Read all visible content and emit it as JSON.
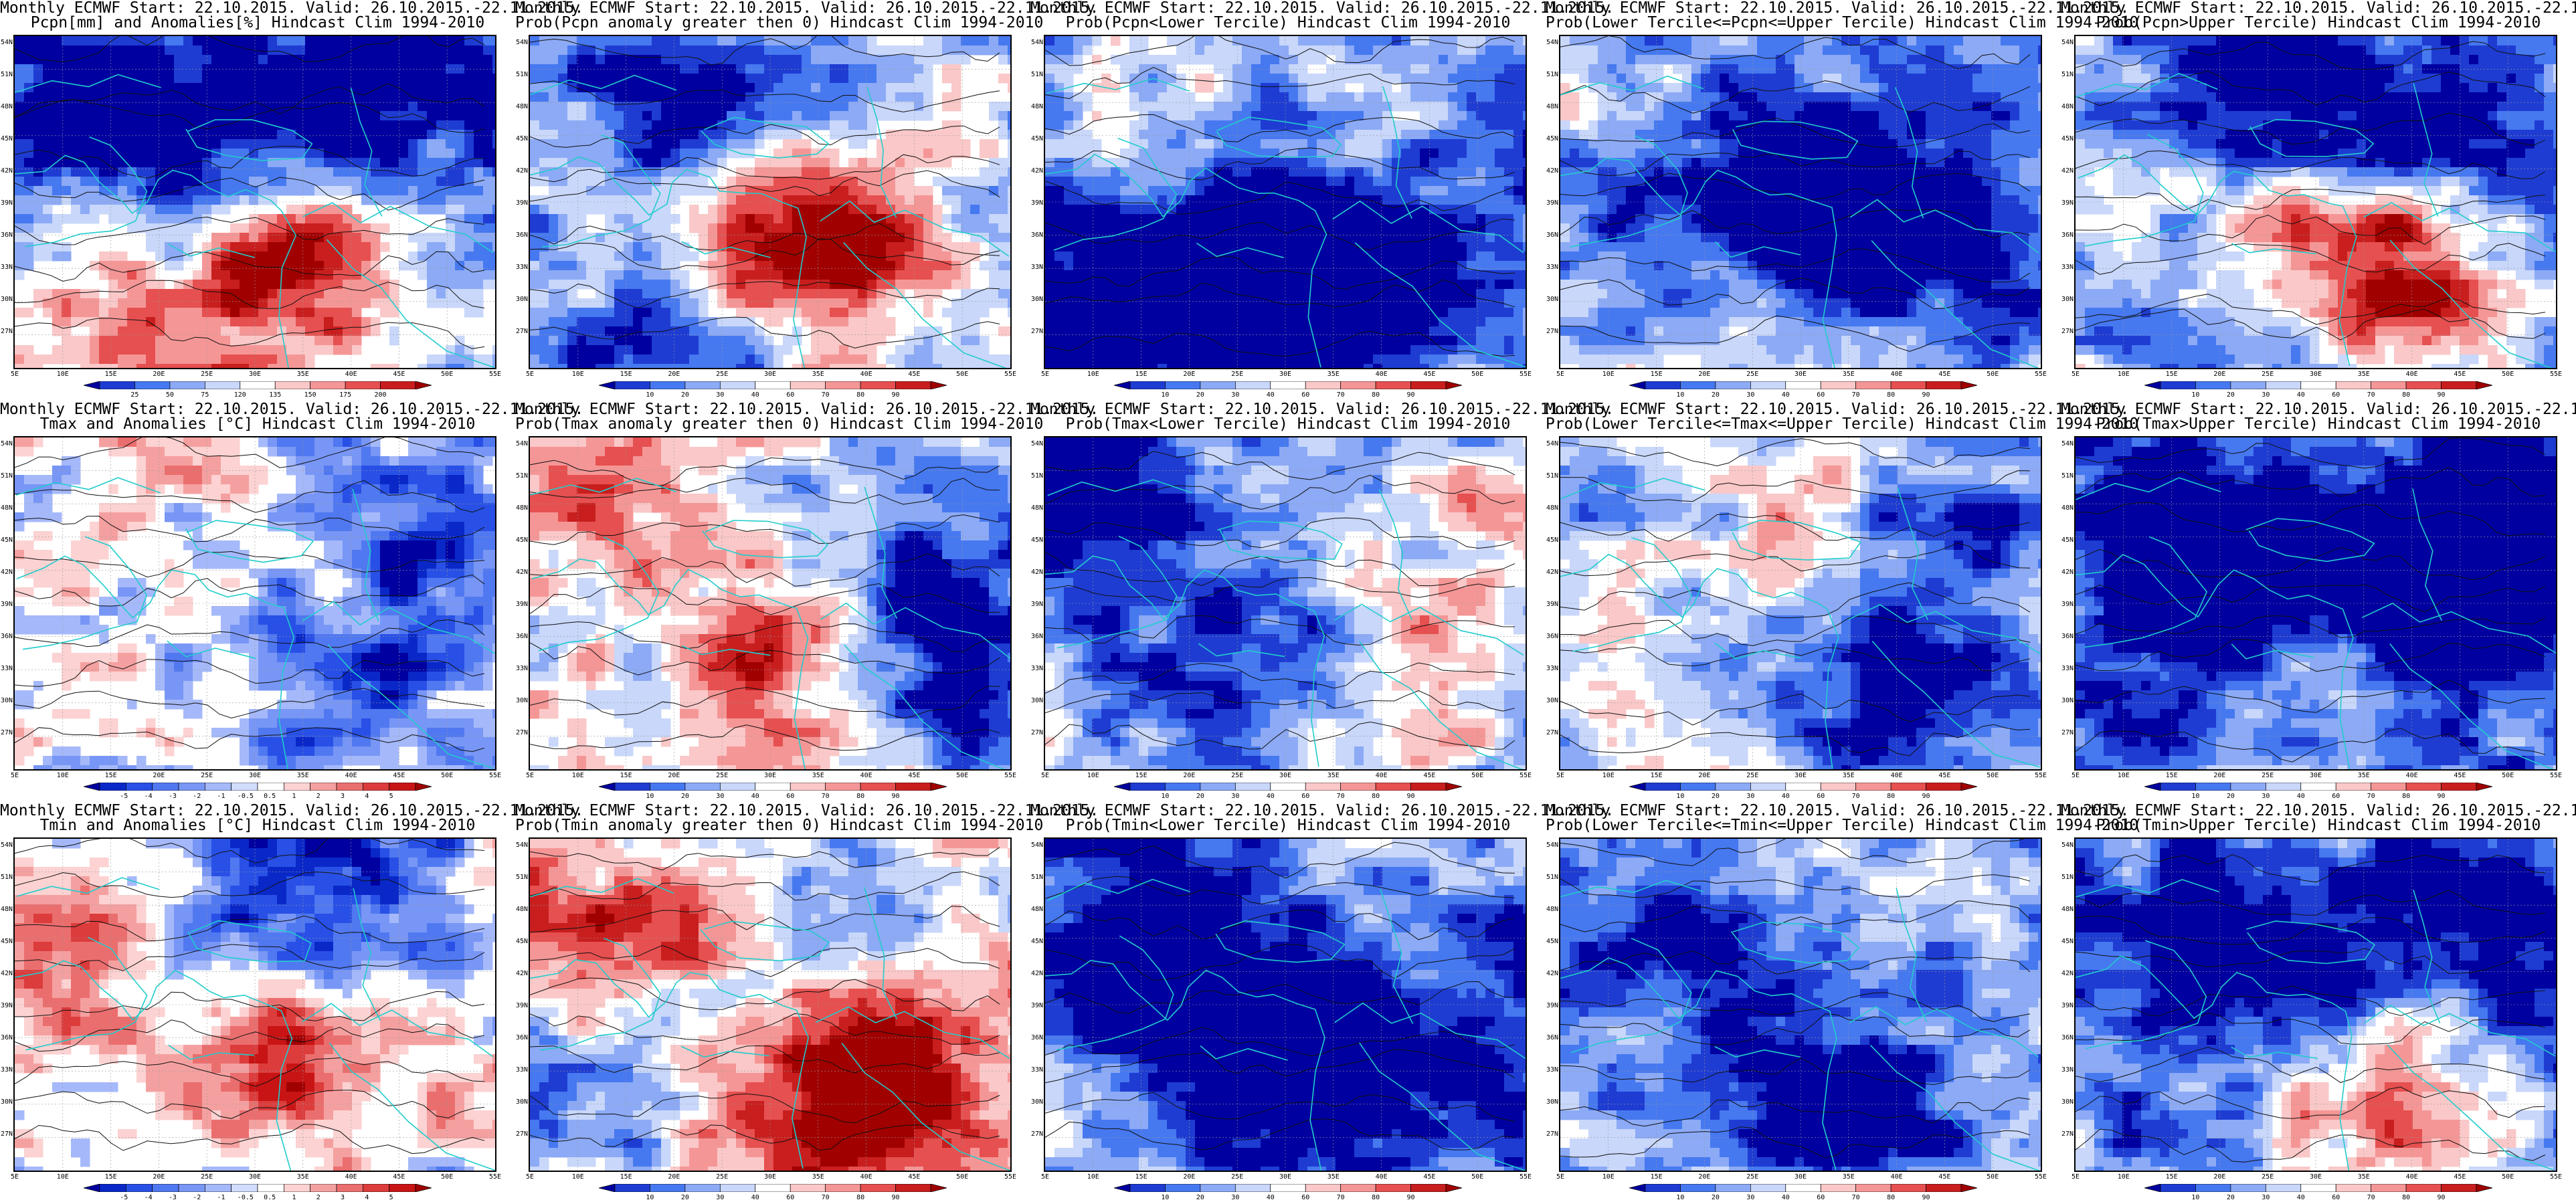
{
  "title_line1": "Monthly ECMWF Start: 22.10.2015. Valid: 26.10.2015.-22.11.2015.",
  "lat_labels": [
    "54N",
    "51N",
    "48N",
    "45N",
    "42N",
    "39N",
    "36N",
    "33N",
    "30N",
    "27N"
  ],
  "lon_labels": [
    "5E",
    "10E",
    "15E",
    "20E",
    "25E",
    "30E",
    "35E",
    "40E",
    "45E",
    "50E",
    "55E"
  ],
  "colorbars": {
    "precip_anom": [
      "25",
      "50",
      "75",
      "120",
      "135",
      "150",
      "175",
      "200"
    ],
    "temp_anom": [
      "-5",
      "-4",
      "-3",
      "-2",
      "-1",
      "-0.5",
      "0.5",
      "1",
      "2",
      "3",
      "4",
      "5"
    ],
    "prob": [
      "10",
      "20",
      "30",
      "40",
      "60",
      "70",
      "80",
      "90"
    ]
  },
  "palettes": {
    "blue_red_8": [
      "#0000a0",
      "#1e3cd2",
      "#4678f0",
      "#8caaf5",
      "#c8d7fa",
      "#ffffff",
      "#fac8c8",
      "#f59696",
      "#e65050",
      "#c81e1e",
      "#a00000"
    ],
    "blue_red_12": [
      "#0000a0",
      "#0a28c8",
      "#2850e6",
      "#5078f0",
      "#7896f5",
      "#a5b9fa",
      "#d2dcfc",
      "#ffffff",
      "#fcd2d2",
      "#f5a0a0",
      "#eb6e6e",
      "#dc3c3c",
      "#c81414",
      "#a00000"
    ]
  },
  "rows": [
    {
      "var": "Pcpn",
      "panels": [
        {
          "id": "pcpn-anom",
          "line2": "Pcpn[mm] and Anomalies[%] Hindcast Clim 1994-2010",
          "cbar": "precip_anom",
          "field": {
            "base": -0.4,
            "mode": "anom",
            "hot": [
              [
                0.62,
                0.65,
                0.9
              ],
              [
                0.1,
                0.9,
                0.5
              ],
              [
                0.4,
                0.88,
                0.4
              ]
            ],
            "cold": [
              [
                0.15,
                0.18,
                0.7
              ],
              [
                0.5,
                0.25,
                0.5
              ],
              [
                0.8,
                0.12,
                0.5
              ]
            ]
          }
        },
        {
          "id": "pcpn-prob-pos",
          "line2": "Prob(Pcpn anomaly greater then 0) Hindcast Clim 1994-2010",
          "cbar": "prob",
          "field": {
            "base": -0.3,
            "mode": "prob",
            "hot": [
              [
                0.65,
                0.65,
                0.9
              ],
              [
                0.35,
                0.55,
                0.4
              ]
            ],
            "cold": [
              [
                0.3,
                0.2,
                0.6
              ],
              [
                0.2,
                0.9,
                0.4
              ]
            ]
          }
        },
        {
          "id": "pcpn-prob-lower",
          "line2": "Prob(Pcpn<Lower Tercile) Hindcast Clim 1994-2010",
          "cbar": "prob",
          "field": {
            "base": -0.7,
            "mode": "prob",
            "hot": [
              [
                0.25,
                0.2,
                0.4
              ],
              [
                0.7,
                0.2,
                0.3
              ]
            ],
            "cold": [
              [
                0.55,
                0.65,
                1.0
              ],
              [
                0.2,
                0.8,
                0.7
              ]
            ]
          }
        },
        {
          "id": "pcpn-prob-mid",
          "line2": "Prob(Lower Tercile<=Pcpn<=Upper Tercile) Hindcast Clim 1994-2010",
          "cbar": "prob",
          "field": {
            "base": -0.5,
            "mode": "prob",
            "hot": [
              [
                0.2,
                0.25,
                0.3
              ],
              [
                0.35,
                0.95,
                0.3
              ]
            ],
            "cold": [
              [
                0.65,
                0.55,
                0.8
              ],
              [
                0.3,
                0.4,
                0.5
              ]
            ]
          }
        },
        {
          "id": "pcpn-prob-upper",
          "line2": "Prob(Pcpn>Upper Tercile) Hindcast Clim 1994-2010",
          "cbar": "prob",
          "field": {
            "base": -0.45,
            "mode": "prob",
            "hot": [
              [
                0.68,
                0.7,
                1.0
              ],
              [
                0.4,
                0.55,
                0.5
              ]
            ],
            "cold": [
              [
                0.4,
                0.15,
                0.6
              ],
              [
                0.8,
                0.3,
                0.5
              ]
            ]
          }
        }
      ]
    },
    {
      "var": "Tmax",
      "panels": [
        {
          "id": "tmax-anom",
          "line2": "Tmax and Anomalies [°C] Hindcast Clim 1994-2010",
          "cbar": "temp_anom",
          "field": {
            "base": -0.1,
            "mode": "anom",
            "hot": [
              [
                0.3,
                0.2,
                0.15
              ]
            ],
            "cold": [
              [
                0.9,
                0.3,
                0.45
              ],
              [
                0.7,
                0.75,
                0.35
              ]
            ]
          }
        },
        {
          "id": "tmax-prob-pos",
          "line2": "Prob(Tmax anomaly greater then 0) Hindcast Clim 1994-2010",
          "cbar": "prob",
          "field": {
            "base": -0.1,
            "mode": "prob",
            "hot": [
              [
                0.2,
                0.2,
                0.4
              ],
              [
                0.55,
                0.7,
                0.7
              ]
            ],
            "cold": [
              [
                0.8,
                0.7,
                0.7
              ],
              [
                0.85,
                0.25,
                0.4
              ]
            ]
          }
        },
        {
          "id": "tmax-prob-lower",
          "line2": "Prob(Tmax<Lower Tercile) Hindcast Clim 1994-2010",
          "cbar": "prob",
          "field": {
            "base": -0.35,
            "mode": "prob",
            "hot": [
              [
                0.72,
                0.75,
                0.6
              ],
              [
                0.9,
                0.25,
                0.3
              ]
            ],
            "cold": [
              [
                0.1,
                0.2,
                0.7
              ],
              [
                0.45,
                0.7,
                0.6
              ]
            ]
          }
        },
        {
          "id": "tmax-prob-mid",
          "line2": "Prob(Lower Tercile<=Tmax<=Upper Tercile) Hindcast Clim 1994-2010",
          "cbar": "prob",
          "field": {
            "base": -0.25,
            "mode": "prob",
            "hot": [
              [
                0.5,
                0.2,
                0.2
              ]
            ],
            "cold": [
              [
                0.7,
                0.8,
                0.6
              ],
              [
                0.85,
                0.3,
                0.4
              ]
            ]
          }
        },
        {
          "id": "tmax-prob-upper",
          "line2": "Prob(Tmax>Upper Tercile) Hindcast Clim 1994-2010",
          "cbar": "prob",
          "field": {
            "base": -0.75,
            "mode": "prob",
            "hot": [
              [
                0.45,
                0.7,
                0.35
              ]
            ],
            "cold": [
              [
                0.3,
                0.4,
                0.7
              ],
              [
                0.8,
                0.4,
                0.8
              ]
            ]
          }
        }
      ]
    },
    {
      "var": "Tmin",
      "panels": [
        {
          "id": "tmin-anom",
          "line2": "Tmin and Anomalies [°C] Hindcast Clim 1994-2010",
          "cbar": "temp_anom",
          "field": {
            "base": 0.0,
            "mode": "anom",
            "hot": [
              [
                0.6,
                0.65,
                0.5
              ],
              [
                0.15,
                0.3,
                0.3
              ]
            ],
            "cold": [
              [
                0.7,
                0.15,
                0.4
              ],
              [
                0.5,
                0.1,
                0.4
              ]
            ]
          }
        },
        {
          "id": "tmin-prob-pos",
          "line2": "Prob(Tmin anomaly greater then 0) Hindcast Clim 1994-2010",
          "cbar": "prob",
          "field": {
            "base": 0.1,
            "mode": "prob",
            "hot": [
              [
                0.7,
                0.75,
                1.0
              ],
              [
                0.15,
                0.3,
                0.5
              ]
            ],
            "cold": [
              [
                0.7,
                0.15,
                0.4
              ],
              [
                0.1,
                0.75,
                0.4
              ]
            ]
          }
        },
        {
          "id": "tmin-prob-lower",
          "line2": "Prob(Tmin<Lower Tercile) Hindcast Clim 1994-2010",
          "cbar": "prob",
          "field": {
            "base": -0.7,
            "mode": "prob",
            "hot": [
              [
                0.7,
                0.15,
                0.3
              ],
              [
                0.05,
                0.8,
                0.25
              ]
            ],
            "cold": [
              [
                0.55,
                0.6,
                1.0
              ],
              [
                0.2,
                0.4,
                0.6
              ]
            ]
          }
        },
        {
          "id": "tmin-prob-mid",
          "line2": "Prob(Lower Tercile<=Tmin<=Upper Tercile) Hindcast Clim 1994-2010",
          "cbar": "prob",
          "field": {
            "base": -0.45,
            "mode": "prob",
            "hot": [
              [
                0.45,
                0.2,
                0.25
              ]
            ],
            "cold": [
              [
                0.55,
                0.8,
                0.6
              ],
              [
                0.3,
                0.3,
                0.6
              ]
            ]
          }
        },
        {
          "id": "tmin-prob-upper",
          "line2": "Prob(Tmin>Upper Tercile) Hindcast Clim 1994-2010",
          "cbar": "prob",
          "field": {
            "base": -0.6,
            "mode": "prob",
            "hot": [
              [
                0.62,
                0.75,
                0.8
              ]
            ],
            "cold": [
              [
                0.3,
                0.35,
                0.7
              ],
              [
                0.85,
                0.2,
                0.6
              ]
            ]
          }
        }
      ]
    }
  ]
}
